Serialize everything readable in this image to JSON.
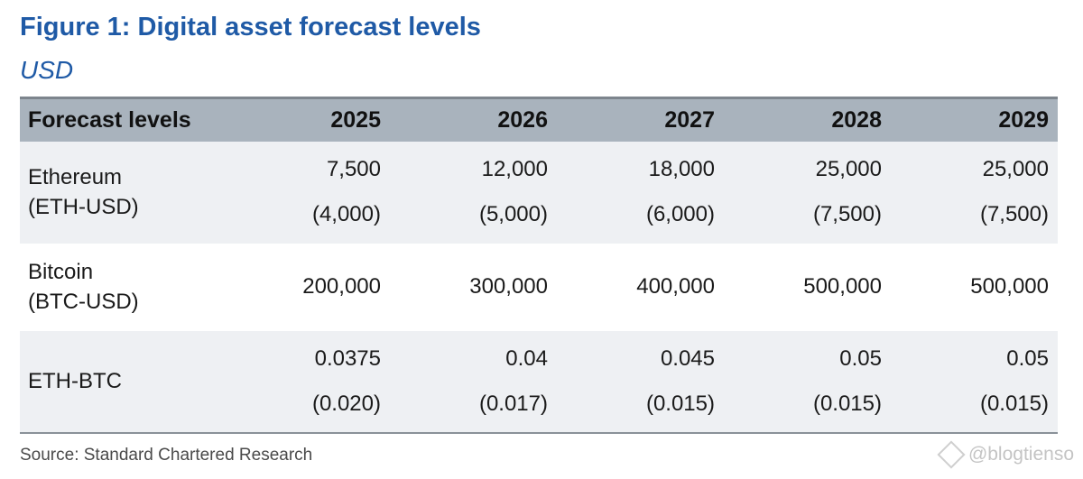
{
  "title": "Figure 1: Digital asset forecast levels",
  "subtitle": "USD",
  "source": "Source: Standard Chartered Research",
  "watermark": "@blogtienso",
  "chart_data": {
    "type": "table",
    "columns": [
      "Forecast levels",
      "2025",
      "2026",
      "2027",
      "2028",
      "2029"
    ],
    "rows": [
      {
        "label_line1": "Ethereum",
        "label_line2": "(ETH-USD)",
        "values": [
          "7,500",
          "12,000",
          "18,000",
          "25,000",
          "25,000"
        ],
        "ranges": [
          "(4,000)",
          "(5,000)",
          "(6,000)",
          "(7,500)",
          "(7,500)"
        ]
      },
      {
        "label_line1": "Bitcoin",
        "label_line2": "(BTC-USD)",
        "values": [
          "200,000",
          "300,000",
          "400,000",
          "500,000",
          "500,000"
        ]
      },
      {
        "label_line1": "ETH-BTC",
        "values": [
          "0.0375",
          "0.04",
          "0.045",
          "0.05",
          "0.05"
        ],
        "ranges": [
          "(0.020)",
          "(0.017)",
          "(0.015)",
          "(0.015)",
          "(0.015)"
        ]
      }
    ]
  }
}
